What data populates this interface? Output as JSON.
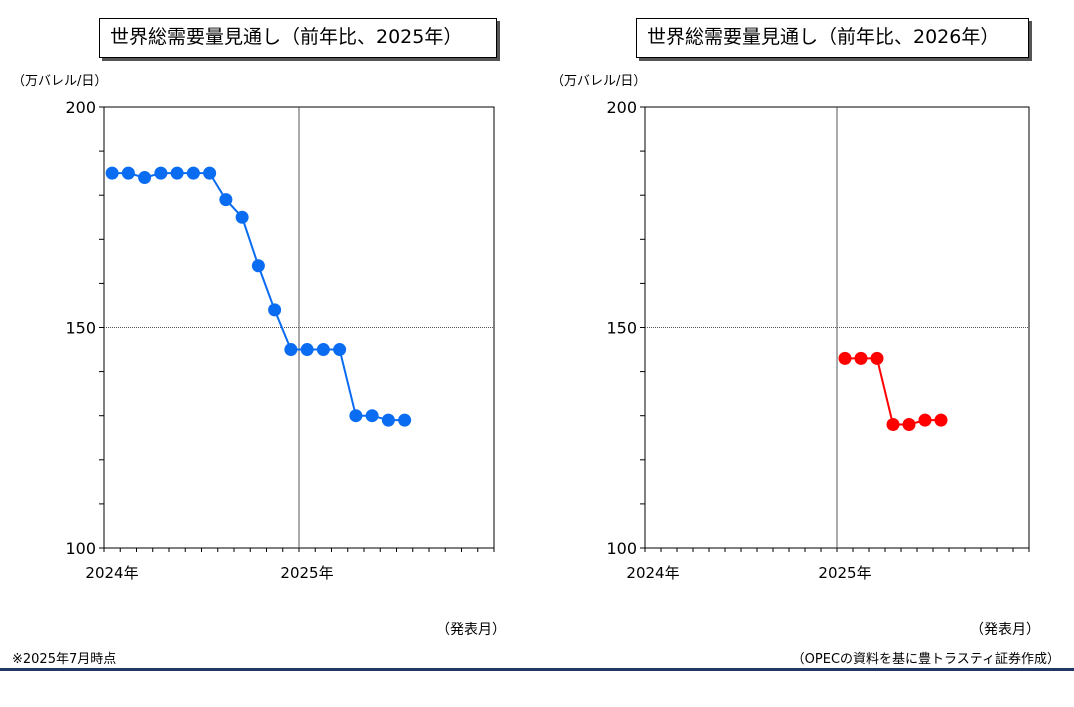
{
  "page": {
    "note": "※2025年7月時点",
    "source": "（OPECの資料を基に豊トラスティ証券作成）"
  },
  "chart_data": [
    {
      "type": "line",
      "title": "世界総需要量見通し（前年比、2025年）",
      "ylabel": "（万バレル/日）",
      "xlabel": "（発表月）",
      "ylim": [
        100,
        200
      ],
      "yticks": [
        100,
        150,
        200
      ],
      "x_ticks": [
        "2024年",
        "2025年"
      ],
      "x_range_months": 24,
      "grid": "ref lines at 150 and 2025年",
      "series": [
        {
          "color": "#0a6cf0",
          "points": [
            {
              "x": "2024-01",
              "y": 185
            },
            {
              "x": "2024-02",
              "y": 185
            },
            {
              "x": "2024-03",
              "y": 184
            },
            {
              "x": "2024-04",
              "y": 185
            },
            {
              "x": "2024-05",
              "y": 185
            },
            {
              "x": "2024-06",
              "y": 185
            },
            {
              "x": "2024-07",
              "y": 185
            },
            {
              "x": "2024-08",
              "y": 179
            },
            {
              "x": "2024-09",
              "y": 175
            },
            {
              "x": "2024-10",
              "y": 164
            },
            {
              "x": "2024-11",
              "y": 154
            },
            {
              "x": "2024-12",
              "y": 145
            },
            {
              "x": "2025-01",
              "y": 145
            },
            {
              "x": "2025-02",
              "y": 145
            },
            {
              "x": "2025-03",
              "y": 145
            },
            {
              "x": "2025-04",
              "y": 130
            },
            {
              "x": "2025-05",
              "y": 130
            },
            {
              "x": "2025-06",
              "y": 129
            },
            {
              "x": "2025-07",
              "y": 129
            }
          ]
        }
      ]
    },
    {
      "type": "line",
      "title": "世界総需要量見通し（前年比、2026年）",
      "ylabel": "（万バレル/日）",
      "xlabel": "（発表月）",
      "ylim": [
        100,
        200
      ],
      "yticks": [
        100,
        150,
        200
      ],
      "x_ticks": [
        "2024年",
        "2025年"
      ],
      "x_range_months": 24,
      "grid": "ref lines at 150 and 2025年",
      "series": [
        {
          "color": "#ff0000",
          "points": [
            {
              "x": "2025-01",
              "y": 143
            },
            {
              "x": "2025-02",
              "y": 143
            },
            {
              "x": "2025-03",
              "y": 143
            },
            {
              "x": "2025-04",
              "y": 128
            },
            {
              "x": "2025-05",
              "y": 128
            },
            {
              "x": "2025-06",
              "y": 129
            },
            {
              "x": "2025-07",
              "y": 129
            }
          ]
        }
      ]
    }
  ]
}
